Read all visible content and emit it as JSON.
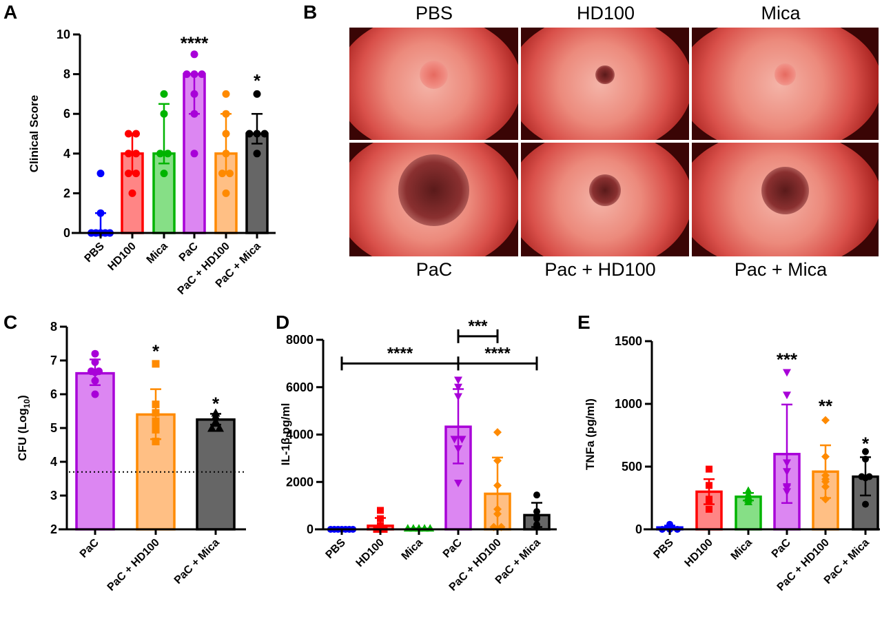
{
  "panels": {
    "A": "A",
    "B": "B",
    "C": "C",
    "D": "D",
    "E": "E"
  },
  "colors": {
    "PBS": {
      "stroke": "#0000ff",
      "fill": "#6f7cff"
    },
    "HD100": {
      "stroke": "#ff0000",
      "fill": "#ff8585"
    },
    "Mica": {
      "stroke": "#00b400",
      "fill": "#86df86"
    },
    "PaC": {
      "stroke": "#a800d8",
      "fill": "#dc86f2"
    },
    "PaC + HD100": {
      "stroke": "#ff8a00",
      "fill": "#ffbf84"
    },
    "PaC + Mica": {
      "stroke": "#000000",
      "fill": "#666666"
    }
  },
  "photos": {
    "top_labels": [
      "PBS",
      "HD100",
      "Mica"
    ],
    "bottom_labels": [
      "PaC",
      "Pac + HD100",
      "Pac + Mica"
    ]
  },
  "chart_data": [
    {
      "id": "A",
      "type": "bar",
      "ylabel": "Clinical Score",
      "ylim": [
        0,
        10
      ],
      "yticks": [
        0,
        2,
        4,
        6,
        8,
        10
      ],
      "categories": [
        "PBS",
        "HD100",
        "Mica",
        "PaC",
        "PaC + HD100",
        "PaC + Mica"
      ],
      "markers": [
        "circle",
        "circle",
        "circle",
        "circle",
        "circle",
        "circle"
      ],
      "values": [
        0,
        4,
        4,
        8,
        4,
        5
      ],
      "errors": [
        [
          0,
          1
        ],
        [
          3,
          5
        ],
        [
          3.5,
          6.5
        ],
        [
          6,
          8
        ],
        [
          3,
          6
        ],
        [
          4.5,
          6
        ]
      ],
      "points": [
        [
          3,
          1,
          0,
          0,
          0,
          0,
          0
        ],
        [
          5,
          5,
          4,
          4,
          3,
          3,
          2
        ],
        [
          7,
          6,
          4,
          4,
          3
        ],
        [
          9,
          8,
          8,
          8,
          7,
          6,
          4
        ],
        [
          7,
          6,
          5,
          4,
          3,
          3,
          2
        ],
        [
          7,
          5,
          5,
          5,
          4
        ]
      ],
      "significance": [
        null,
        null,
        null,
        {
          "label": "****",
          "y": 9.6
        },
        null,
        {
          "label": "*",
          "y": 7.7
        }
      ]
    },
    {
      "id": "C",
      "type": "bar",
      "ylabel": "CFU (Log10)",
      "ylim": [
        2,
        8
      ],
      "yticks": [
        2,
        3,
        4,
        5,
        6,
        7,
        8
      ],
      "categories": [
        "PaC",
        "PaC + HD100",
        "PaC + Mica"
      ],
      "markers": [
        "circle",
        "square",
        "triangle"
      ],
      "values": [
        6.62,
        5.4,
        5.25
      ],
      "errors": [
        [
          6.27,
          7.03
        ],
        [
          4.67,
          6.15
        ],
        [
          5.1,
          5.42
        ]
      ],
      "points": [
        [
          7.2,
          6.95,
          6.68,
          6.68,
          6.65,
          6.4,
          6.0
        ],
        [
          6.9,
          5.7,
          5.45,
          5.2,
          5.1,
          4.95,
          4.6
        ],
        [
          5.45,
          5.35,
          5.2,
          5.15,
          5.0,
          5.0
        ]
      ],
      "significance": [
        null,
        {
          "label": "*",
          "y": 7.3
        },
        {
          "label": "*",
          "y": 5.75
        }
      ],
      "reference_line": 3.7
    },
    {
      "id": "D",
      "type": "bar",
      "ylabel": "IL-1β pg/ml",
      "ylim": [
        0,
        8000
      ],
      "yticks": [
        0,
        2000,
        4000,
        6000,
        8000
      ],
      "categories": [
        "PBS",
        "HD100",
        "Mica",
        "PaC",
        "PaC + HD100",
        "PaC + Mica"
      ],
      "markers": [
        "circle",
        "square",
        "triangle",
        "triangle-down",
        "diamond",
        "circle"
      ],
      "values": [
        0,
        150,
        20,
        4330,
        1500,
        600
      ],
      "errors": [
        [
          0,
          0
        ],
        [
          0,
          480
        ],
        [
          0,
          40
        ],
        [
          2780,
          5920
        ],
        [
          0,
          3030
        ],
        [
          100,
          1120
        ]
      ],
      "points": [
        [
          0,
          0,
          0,
          0,
          0,
          0,
          0
        ],
        [
          800,
          450,
          150,
          100,
          50,
          0,
          0
        ],
        [
          50,
          50,
          50,
          50,
          50
        ],
        [
          6300,
          6000,
          5600,
          3800,
          3800,
          3400,
          1950
        ],
        [
          4100,
          2900,
          1850,
          850,
          650,
          100,
          100
        ],
        [
          1450,
          750,
          500,
          450,
          200,
          100
        ]
      ],
      "brackets": [
        {
          "from": 0,
          "to": 3,
          "y": 7000,
          "label": "****"
        },
        {
          "from": 3,
          "to": 5,
          "y": 7000,
          "label": "****"
        },
        {
          "from": 3,
          "to": 4,
          "y": 8150,
          "label": "***"
        }
      ]
    },
    {
      "id": "E",
      "type": "bar",
      "ylabel": "TNFa (pg/ml)",
      "ylim": [
        0,
        1500
      ],
      "yticks": [
        0,
        500,
        1000,
        1500
      ],
      "categories": [
        "PBS",
        "HD100",
        "Mica",
        "PaC",
        "PaC + HD100",
        "PaC + Mica"
      ],
      "markers": [
        "circle",
        "square",
        "triangle",
        "triangle-down",
        "diamond",
        "circle"
      ],
      "values": [
        15,
        300,
        260,
        600,
        460,
        420
      ],
      "errors": [
        [
          0,
          30
        ],
        [
          200,
          400
        ],
        [
          230,
          290
        ],
        [
          210,
          995
        ],
        [
          250,
          670
        ],
        [
          270,
          575
        ]
      ],
      "points": [
        [
          40,
          30,
          10,
          0,
          0,
          0
        ],
        [
          480,
          350,
          240,
          230,
          160
        ],
        [
          310,
          280,
          260,
          240,
          220
        ],
        [
          1250,
          1070,
          530,
          460,
          340,
          330,
          300
        ],
        [
          870,
          580,
          430,
          400,
          380,
          340,
          240
        ],
        [
          620,
          560,
          420,
          420,
          410,
          200
        ]
      ],
      "significance": [
        null,
        null,
        null,
        {
          "label": "***",
          "y": 1360
        },
        {
          "label": "**",
          "y": 990
        },
        {
          "label": "*",
          "y": 690
        }
      ]
    }
  ]
}
